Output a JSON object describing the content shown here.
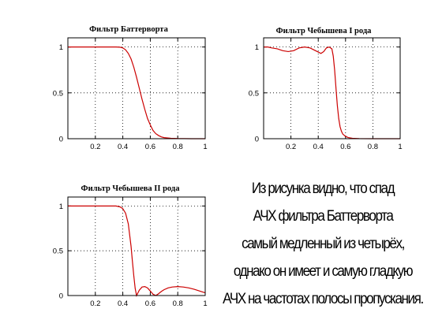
{
  "chart_data": [
    {
      "type": "line",
      "title": "Фильтр Баттерворта",
      "xlim": [
        0,
        1
      ],
      "ylim": [
        0,
        1.1
      ],
      "xticks": [
        "0.2",
        "0.4",
        "0.6",
        "0.8",
        "1"
      ],
      "xtick_values": [
        0.2,
        0.4,
        0.6,
        0.8,
        1.0
      ],
      "yticks": [
        "0",
        "0.5",
        "1"
      ],
      "ytick_values": [
        0,
        0.5,
        1
      ],
      "grid": true,
      "series": [
        {
          "color": "#cc0000",
          "x": [
            0,
            0.05,
            0.1,
            0.15,
            0.2,
            0.25,
            0.3,
            0.35,
            0.38,
            0.4,
            0.42,
            0.44,
            0.46,
            0.48,
            0.5,
            0.52,
            0.54,
            0.56,
            0.58,
            0.6,
            0.62,
            0.64,
            0.66,
            0.68,
            0.7,
            0.75,
            0.8,
            0.9,
            1.0
          ],
          "y": [
            1,
            1,
            1,
            1,
            1,
            1,
            1,
            1,
            0.998,
            0.99,
            0.97,
            0.93,
            0.87,
            0.78,
            0.67,
            0.55,
            0.43,
            0.32,
            0.22,
            0.15,
            0.09,
            0.055,
            0.035,
            0.02,
            0.012,
            0.005,
            0.002,
            0,
            0
          ]
        }
      ]
    },
    {
      "type": "line",
      "title": "Фильтр Чебышева I рода",
      "xlim": [
        0,
        1
      ],
      "ylim": [
        0,
        1.1
      ],
      "xticks": [
        "0.2",
        "0.4",
        "0.6",
        "0.8",
        "1"
      ],
      "xtick_values": [
        0.2,
        0.4,
        0.6,
        0.8,
        1.0
      ],
      "yticks": [
        "0",
        "0.5",
        "1"
      ],
      "ytick_values": [
        0,
        0.5,
        1
      ],
      "grid": true,
      "series": [
        {
          "color": "#cc0000",
          "x": [
            0,
            0.03,
            0.06,
            0.1,
            0.14,
            0.18,
            0.22,
            0.26,
            0.3,
            0.34,
            0.38,
            0.42,
            0.44,
            0.46,
            0.48,
            0.5,
            0.51,
            0.52,
            0.53,
            0.54,
            0.55,
            0.56,
            0.57,
            0.58,
            0.6,
            0.62,
            0.65,
            0.7,
            0.8,
            1.0
          ],
          "y": [
            1,
            1,
            0.99,
            0.98,
            0.96,
            0.95,
            0.96,
            0.99,
            1.0,
            0.99,
            0.96,
            0.93,
            0.95,
            0.99,
            1.0,
            0.98,
            0.9,
            0.75,
            0.55,
            0.36,
            0.22,
            0.13,
            0.08,
            0.05,
            0.025,
            0.012,
            0.005,
            0.001,
            0,
            0
          ]
        }
      ]
    },
    {
      "type": "line",
      "title": "Фильтр Чебышева II рода",
      "xlim": [
        0,
        1
      ],
      "ylim": [
        0,
        1.1
      ],
      "xticks": [
        "0.2",
        "0.4",
        "0.6",
        "0.8",
        "1"
      ],
      "xtick_values": [
        0.2,
        0.4,
        0.6,
        0.8,
        1.0
      ],
      "yticks": [
        "0",
        "0.5",
        "1"
      ],
      "ytick_values": [
        0,
        0.5,
        1
      ],
      "grid": true,
      "series": [
        {
          "color": "#cc0000",
          "x": [
            0,
            0.05,
            0.1,
            0.15,
            0.2,
            0.25,
            0.3,
            0.35,
            0.38,
            0.4,
            0.42,
            0.44,
            0.46,
            0.47,
            0.48,
            0.49,
            0.5,
            0.52,
            0.54,
            0.56,
            0.58,
            0.6,
            0.62,
            0.64,
            0.66,
            0.68,
            0.7,
            0.73,
            0.76,
            0.8,
            0.84,
            0.88,
            0.92,
            0.96,
            1.0
          ],
          "y": [
            1,
            1,
            1,
            1,
            1,
            1,
            1,
            1,
            0.99,
            0.97,
            0.92,
            0.8,
            0.55,
            0.38,
            0.22,
            0.08,
            0,
            0.06,
            0.095,
            0.1,
            0.085,
            0.05,
            0.015,
            0,
            0.02,
            0.045,
            0.065,
            0.085,
            0.095,
            0.1,
            0.095,
            0.085,
            0.07,
            0.05,
            0.03
          ]
        }
      ]
    }
  ],
  "caption": {
    "lines": [
      "Из рисунка видно, что спад",
      "АЧХ фильтра Баттерворта",
      "самый медленный из четырёх,",
      "однако он имеет и самую гладкую",
      "АЧХ на частотах полосы пропускания."
    ]
  }
}
